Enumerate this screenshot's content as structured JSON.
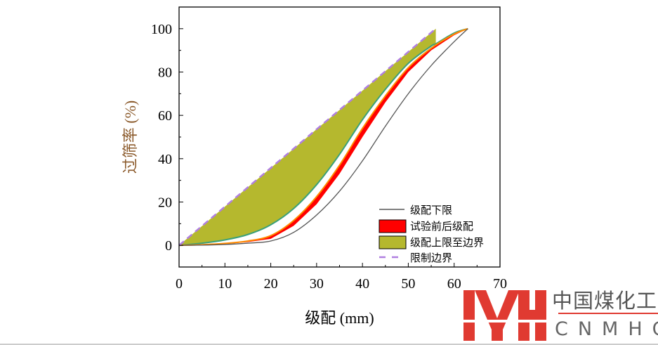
{
  "chart_data": {
    "type": "line",
    "xlabel": "级配 (mm)",
    "ylabel": "过筛率 (%)",
    "xlim": [
      0,
      70
    ],
    "ylim": [
      -10,
      110
    ],
    "xticks": [
      0,
      10,
      20,
      30,
      40,
      50,
      60,
      70
    ],
    "yticks": [
      0,
      20,
      40,
      60,
      80,
      100
    ],
    "grid": false,
    "legend_position": "bottom-right",
    "series": [
      {
        "name": "级配下限",
        "type": "line",
        "color": "#555555",
        "x": [
          0,
          5,
          10,
          15,
          20,
          25,
          30,
          35,
          40,
          45,
          50,
          55,
          60,
          63
        ],
        "y": [
          0,
          0.1,
          0.4,
          1,
          2,
          6,
          14,
          25,
          39,
          55,
          70,
          83,
          94,
          100
        ]
      },
      {
        "name": "试验前后级配",
        "type": "band",
        "color": "#ff0000",
        "x": [
          0,
          5,
          10,
          15,
          20,
          25,
          30,
          35,
          40,
          45,
          50,
          55,
          60,
          63
        ],
        "y_low": [
          0,
          0.2,
          0.6,
          1.5,
          3,
          9,
          19,
          33,
          50,
          66,
          80,
          90,
          97,
          100
        ],
        "y_high": [
          0,
          0.3,
          0.9,
          2,
          4.5,
          11.5,
          22.5,
          37,
          54,
          69,
          82,
          91,
          97.5,
          100
        ]
      },
      {
        "name": "级配上限至边界",
        "type": "band",
        "color": "#b5b82e",
        "x": [
          0,
          5,
          10,
          15,
          20,
          25,
          30,
          35,
          40,
          45,
          50,
          55,
          56,
          60,
          63
        ],
        "y_low": [
          0,
          1,
          2.5,
          5,
          9.5,
          17,
          28,
          42,
          58,
          72,
          84,
          92,
          93,
          98,
          100
        ],
        "y_high": [
          0,
          8.9,
          17.9,
          26.8,
          35.7,
          44.6,
          53.6,
          62.5,
          71.4,
          80.4,
          89.3,
          98.2,
          100,
          null,
          null
        ]
      },
      {
        "name": "限制边界",
        "type": "dashed",
        "color": "#b07fe0",
        "x": [
          0,
          56
        ],
        "y": [
          0,
          100
        ]
      }
    ]
  },
  "logo": {
    "chinese": "中国煤化工",
    "english": "CNMHG"
  }
}
